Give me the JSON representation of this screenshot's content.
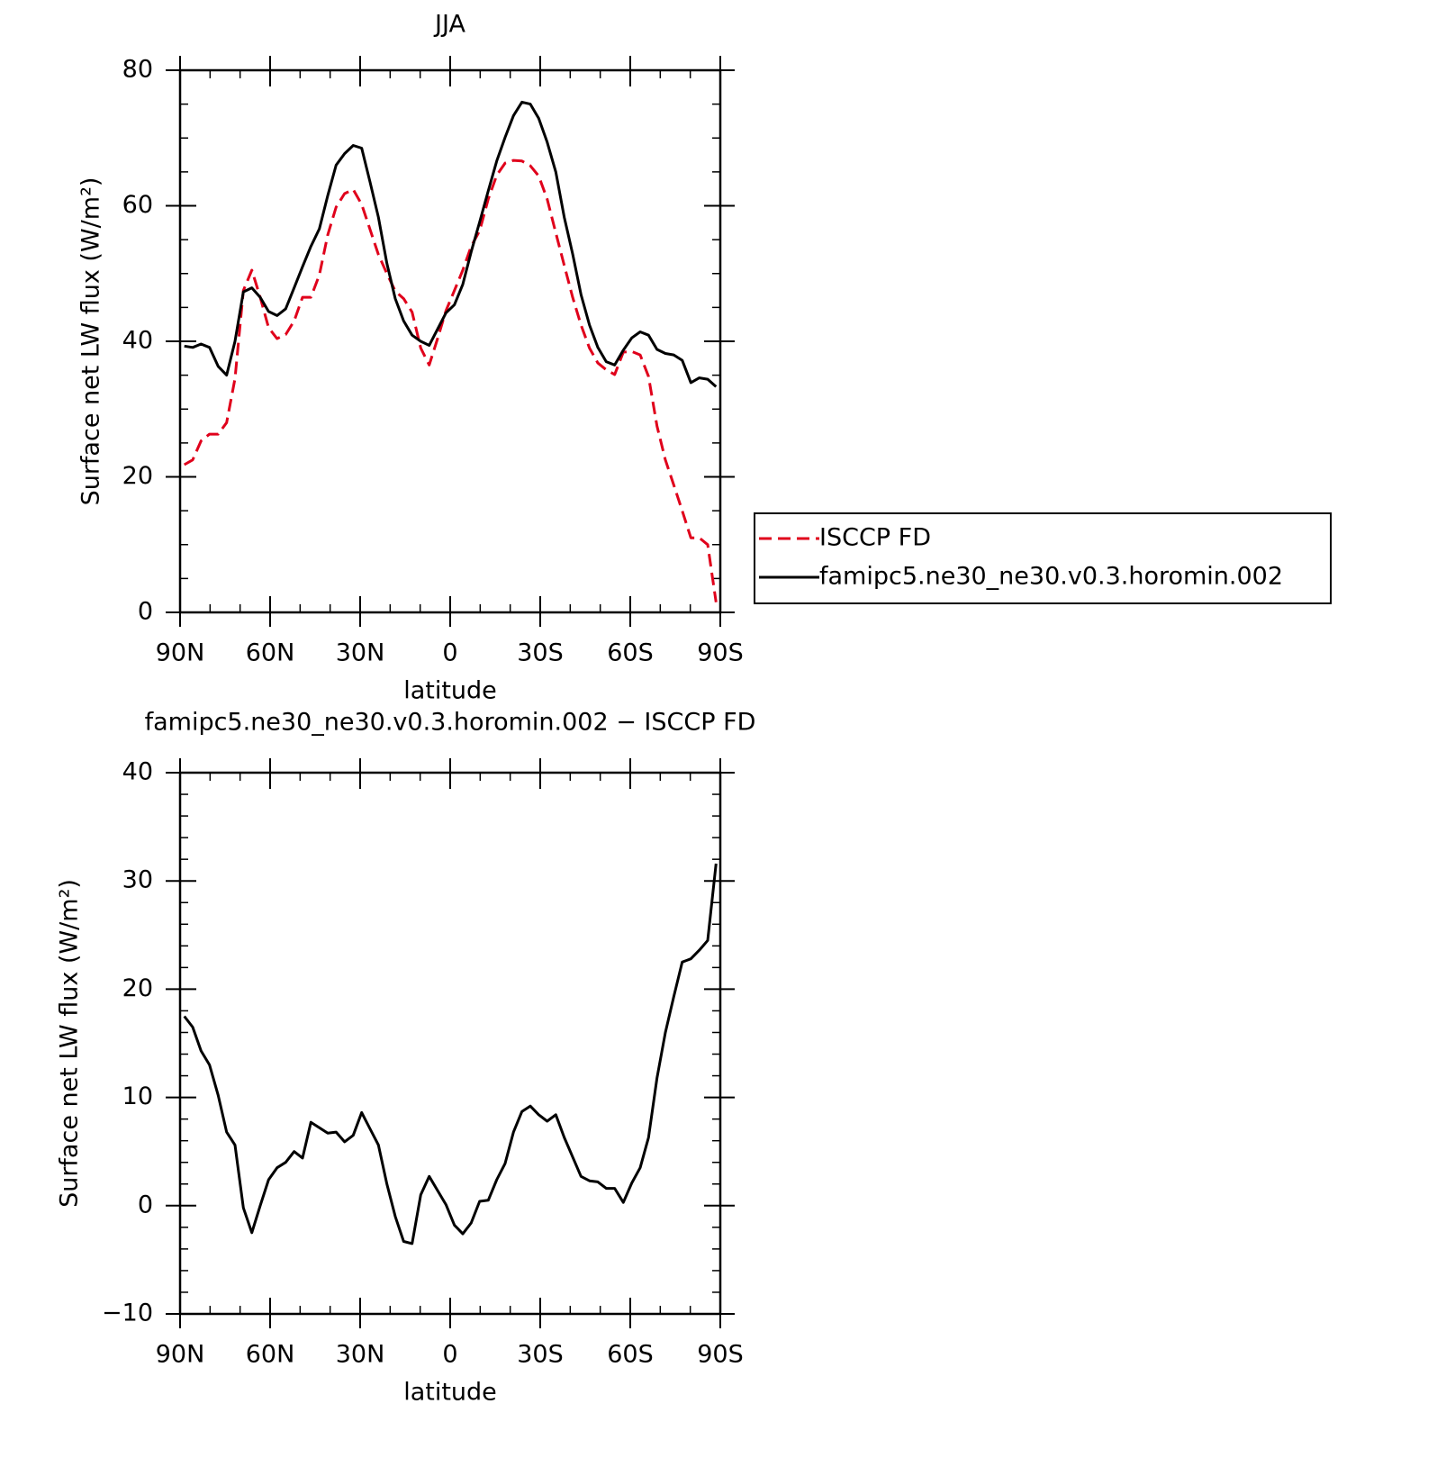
{
  "chart_data": [
    {
      "type": "line",
      "title": "JJA",
      "xlabel": "latitude",
      "ylabel": "Surface net LW flux (W/m²)",
      "xlim": [
        90,
        -90
      ],
      "xticks": [
        {
          "value": 90,
          "label": "90N"
        },
        {
          "value": 60,
          "label": "60N"
        },
        {
          "value": 30,
          "label": "30N"
        },
        0,
        {
          "value": -30,
          "label": "30S"
        },
        {
          "value": -60,
          "label": "60S"
        },
        {
          "value": -90,
          "label": "90S"
        }
      ],
      "xminor": [
        80,
        70,
        50,
        40,
        20,
        10,
        -10,
        -20,
        -40,
        -50,
        -70,
        -80
      ],
      "ylim": [
        0,
        80
      ],
      "yticks": [
        0,
        20,
        40,
        60,
        80
      ],
      "yminor": [
        5,
        10,
        15,
        25,
        30,
        35,
        45,
        50,
        55,
        65,
        70,
        75
      ],
      "legend": "right",
      "x": [
        88.6,
        85.8,
        83.0,
        80.2,
        77.3,
        74.5,
        71.7,
        68.9,
        66.1,
        63.3,
        60.5,
        57.7,
        54.8,
        52.0,
        49.2,
        46.4,
        43.6,
        40.8,
        38.0,
        35.2,
        32.3,
        29.5,
        26.7,
        23.9,
        21.1,
        18.3,
        15.5,
        12.7,
        9.8,
        7.0,
        4.2,
        1.4,
        -1.4,
        -4.2,
        -7.0,
        -9.8,
        -12.7,
        -15.5,
        -18.3,
        -21.1,
        -23.9,
        -26.7,
        -29.5,
        -32.3,
        -35.2,
        -38.0,
        -40.8,
        -43.6,
        -46.4,
        -49.2,
        -52.0,
        -54.8,
        -57.7,
        -60.5,
        -63.3,
        -66.1,
        -68.9,
        -71.7,
        -74.5,
        -77.3,
        -80.2,
        -83.0,
        -85.8,
        -88.6
      ],
      "series": [
        {
          "name": "ISCCP FD",
          "color": "#e0001b",
          "dashed": true,
          "values": [
            21.8,
            22.5,
            25.3,
            26.3,
            26.3,
            28,
            34.5,
            47.5,
            50.5,
            46.5,
            42,
            40.4,
            41,
            43,
            46.5,
            46.5,
            49.8,
            55.7,
            59.8,
            61.8,
            62.4,
            60.2,
            56.5,
            52.8,
            50,
            47.4,
            46.3,
            44.3,
            39,
            36.5,
            40.4,
            44.5,
            47.5,
            50.5,
            54,
            56.3,
            61,
            64.5,
            66.3,
            66.7,
            66.6,
            65.9,
            64.4,
            61,
            56,
            51.2,
            46.5,
            42.4,
            39,
            36.8,
            35.8,
            35.1,
            38.4,
            38.5,
            38,
            34.8,
            27.5,
            22.5,
            18.8,
            15,
            11,
            11,
            10,
            1.5
          ]
        },
        {
          "name": "famipc5.ne30_ne30.v0.3.horomin.002",
          "color": "#000000",
          "dashed": false,
          "values": [
            39.3,
            39.1,
            39.6,
            39.1,
            36.3,
            35,
            40,
            47.3,
            47.9,
            46.5,
            44.4,
            43.8,
            44.8,
            47.9,
            51,
            54,
            56.6,
            61.5,
            66,
            67.7,
            68.9,
            68.5,
            63.5,
            58.3,
            51.5,
            46.3,
            43,
            40.9,
            40,
            39.4,
            41.8,
            44.2,
            45.4,
            48.4,
            53.2,
            57.6,
            62.2,
            66.6,
            70.1,
            73.3,
            75.3,
            75,
            72.9,
            69.4,
            65,
            58.3,
            52.9,
            46.9,
            42.4,
            39.1,
            37,
            36.5,
            38.7,
            40.5,
            41.4,
            40.9,
            38.8,
            38.2,
            38,
            37.2,
            33.9,
            34.6,
            34.4,
            33.3
          ]
        }
      ]
    },
    {
      "type": "line",
      "title": "famipc5.ne30_ne30.v0.3.horomin.002 − ISCCP FD",
      "xlabel": "latitude",
      "ylabel": "Surface net LW flux (W/m²)",
      "xlim": [
        90,
        -90
      ],
      "xticks": [
        {
          "value": 90,
          "label": "90N"
        },
        {
          "value": 60,
          "label": "60N"
        },
        {
          "value": 30,
          "label": "30N"
        },
        0,
        {
          "value": -30,
          "label": "30S"
        },
        {
          "value": -60,
          "label": "60S"
        },
        {
          "value": -90,
          "label": "90S"
        }
      ],
      "xminor": [
        80,
        70,
        50,
        40,
        20,
        10,
        -10,
        -20,
        -40,
        -50,
        -70,
        -80
      ],
      "ylim": [
        -10,
        40
      ],
      "yticks": [
        {
          "value": -10,
          "label": "−10"
        },
        0,
        10,
        20,
        30,
        40
      ],
      "yminor": [
        -8,
        -6,
        -4,
        -2,
        2,
        4,
        6,
        8,
        12,
        14,
        16,
        18,
        22,
        24,
        26,
        28,
        32,
        34,
        36,
        38
      ],
      "x": [
        88.6,
        85.8,
        83.0,
        80.2,
        77.3,
        74.5,
        71.7,
        68.9,
        66.1,
        63.3,
        60.5,
        57.7,
        54.8,
        52.0,
        49.2,
        46.4,
        43.6,
        40.8,
        38.0,
        35.2,
        32.3,
        29.5,
        26.7,
        23.9,
        21.1,
        18.3,
        15.5,
        12.7,
        9.8,
        7.0,
        4.2,
        1.4,
        -1.4,
        -4.2,
        -7.0,
        -9.8,
        -12.7,
        -15.5,
        -18.3,
        -21.1,
        -23.9,
        -26.7,
        -29.5,
        -32.3,
        -35.2,
        -38.0,
        -40.8,
        -43.6,
        -46.4,
        -49.2,
        -52.0,
        -54.8,
        -57.7,
        -60.5,
        -63.3,
        -66.1,
        -68.9,
        -71.7,
        -74.5,
        -77.3,
        -80.2,
        -83.0,
        -85.8,
        -88.6
      ],
      "series": [
        {
          "color": "#000000",
          "dashed": false,
          "values": [
            17.5,
            16.5,
            14.3,
            13,
            10.2,
            6.8,
            5.6,
            -0.2,
            -2.5,
            0,
            2.4,
            3.5,
            4,
            5,
            4.4,
            7.7,
            7.2,
            6.7,
            6.8,
            5.9,
            6.5,
            8.6,
            7.1,
            5.6,
            2,
            -1,
            -3.3,
            -3.5,
            1,
            2.7,
            1.4,
            0.1,
            -1.8,
            -2.6,
            -1.6,
            0.4,
            0.5,
            2.4,
            3.9,
            6.8,
            8.7,
            9.2,
            8.4,
            7.8,
            8.4,
            6.3,
            4.5,
            2.7,
            2.3,
            2.2,
            1.6,
            1.6,
            0.3,
            2.1,
            3.5,
            6.3,
            11.8,
            16,
            19.3,
            22.5,
            22.8,
            23.6,
            24.5,
            31.6
          ]
        }
      ]
    }
  ]
}
